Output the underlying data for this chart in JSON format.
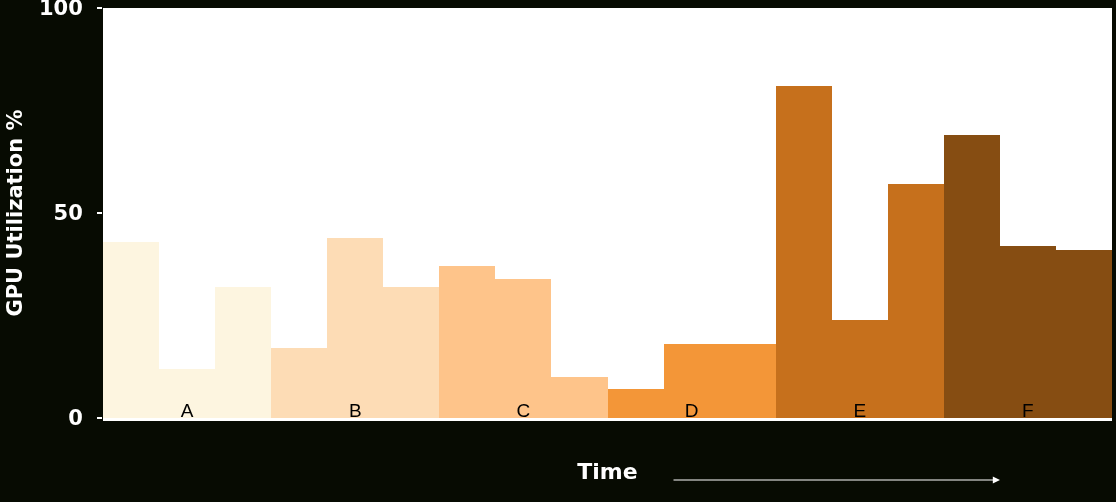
{
  "chart_data": {
    "type": "bar",
    "xlabel": "Time",
    "ylabel": "GPU Utilization %",
    "categories": [
      null,
      "A",
      null,
      null,
      "B",
      null,
      null,
      "C",
      null,
      null,
      "D",
      null,
      null,
      "E",
      null,
      null,
      "F",
      null
    ],
    "values": [
      43,
      12,
      32,
      17,
      44,
      32,
      37,
      34,
      10,
      7,
      18,
      18,
      81,
      24,
      57,
      69,
      42,
      41
    ],
    "colors": [
      "#fdf5e0",
      "#fdf5e0",
      "#fdf5e0",
      "#fddcb5",
      "#fddcb5",
      "#fddcb5",
      "#fec48a",
      "#fec48a",
      "#fec48a",
      "#f39638",
      "#f39638",
      "#f39638",
      "#c6701c",
      "#c6701c",
      "#c6701c",
      "#864d12",
      "#864d12",
      "#864d12"
    ],
    "ylim": [
      0,
      100
    ],
    "yticks": [
      0,
      50,
      100
    ],
    "grid": false
  }
}
